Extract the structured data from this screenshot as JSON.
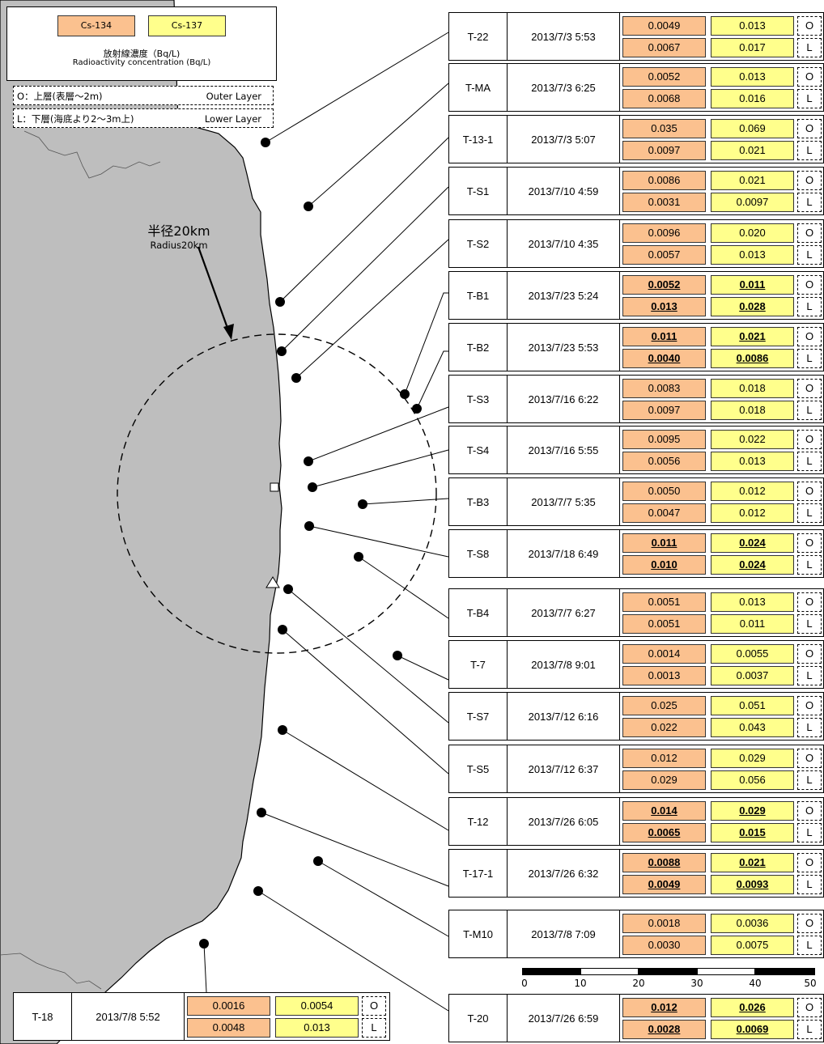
{
  "colors": {
    "cs134": "#FBC18F",
    "cs137": "#FFFF8C",
    "land": "#BEBEBE",
    "sea": "#FFFFFF"
  },
  "legend": {
    "cs134": "Cs-134",
    "cs137": "Cs-137",
    "conc_ja": "放射線濃度（Bq/L)",
    "conc_en": "Radioactivity concentration (Bq/L)",
    "outer_ja": "O：上層(表層～2m)",
    "outer_en": "Outer Layer",
    "lower_ja": "L：下層(海底より2～3m上)",
    "lower_en": "Lower Layer"
  },
  "radius": {
    "ja": "半径20km",
    "en": "Radius20km"
  },
  "layer_marks": {
    "outer": "O",
    "lower": "L"
  },
  "stations": [
    {
      "id": "T-22",
      "date": "2013/7/3 5:53",
      "o": [
        "0.0049",
        "0.013"
      ],
      "l": [
        "0.0067",
        "0.017"
      ],
      "bold": false
    },
    {
      "id": "T-MA",
      "date": "2013/7/3 6:25",
      "o": [
        "0.0052",
        "0.013"
      ],
      "l": [
        "0.0068",
        "0.016"
      ],
      "bold": false
    },
    {
      "id": "T-13-1",
      "date": "2013/7/3 5:07",
      "o": [
        "0.035",
        "0.069"
      ],
      "l": [
        "0.0097",
        "0.021"
      ],
      "bold": false
    },
    {
      "id": "T-S1",
      "date": "2013/7/10 4:59",
      "o": [
        "0.0086",
        "0.021"
      ],
      "l": [
        "0.0031",
        "0.0097"
      ],
      "bold": false
    },
    {
      "id": "T-S2",
      "date": "2013/7/10 4:35",
      "o": [
        "0.0096",
        "0.020"
      ],
      "l": [
        "0.0057",
        "0.013"
      ],
      "bold": false
    },
    {
      "id": "T-B1",
      "date": "2013/7/23 5:24",
      "o": [
        "0.0052",
        "0.011"
      ],
      "l": [
        "0.013",
        "0.028"
      ],
      "bold": true
    },
    {
      "id": "T-B2",
      "date": "2013/7/23 5:53",
      "o": [
        "0.011",
        "0.021"
      ],
      "l": [
        "0.0040",
        "0.0086"
      ],
      "bold": true
    },
    {
      "id": "T-S3",
      "date": "2013/7/16 6:22",
      "o": [
        "0.0083",
        "0.018"
      ],
      "l": [
        "0.0097",
        "0.018"
      ],
      "bold": false
    },
    {
      "id": "T-S4",
      "date": "2013/7/16 5:55",
      "o": [
        "0.0095",
        "0.022"
      ],
      "l": [
        "0.0056",
        "0.013"
      ],
      "bold": false
    },
    {
      "id": "T-B3",
      "date": "2013/7/7 5:35",
      "o": [
        "0.0050",
        "0.012"
      ],
      "l": [
        "0.0047",
        "0.012"
      ],
      "bold": false
    },
    {
      "id": "T-S8",
      "date": "2013/7/18 6:49",
      "o": [
        "0.011",
        "0.024"
      ],
      "l": [
        "0.010",
        "0.024"
      ],
      "bold": true
    },
    {
      "id": "T-B4",
      "date": "2013/7/7 6:27",
      "o": [
        "0.0051",
        "0.013"
      ],
      "l": [
        "0.0051",
        "0.011"
      ],
      "bold": false
    },
    {
      "id": "T-7",
      "date": "2013/7/8 9:01",
      "o": [
        "0.0014",
        "0.0055"
      ],
      "l": [
        "0.0013",
        "0.0037"
      ],
      "bold": false
    },
    {
      "id": "T-S7",
      "date": "2013/7/12 6:16",
      "o": [
        "0.025",
        "0.051"
      ],
      "l": [
        "0.022",
        "0.043"
      ],
      "bold": false
    },
    {
      "id": "T-S5",
      "date": "2013/7/12 6:37",
      "o": [
        "0.012",
        "0.029"
      ],
      "l": [
        "0.029",
        "0.056"
      ],
      "bold": false
    },
    {
      "id": "T-12",
      "date": "2013/7/26 6:05",
      "o": [
        "0.014",
        "0.029"
      ],
      "l": [
        "0.0065",
        "0.015"
      ],
      "bold": true
    },
    {
      "id": "T-17-1",
      "date": "2013/7/26 6:32",
      "o": [
        "0.0088",
        "0.021"
      ],
      "l": [
        "0.0049",
        "0.0093"
      ],
      "bold": true
    },
    {
      "id": "T-M10",
      "date": "2013/7/8 7:09",
      "o": [
        "0.0018",
        "0.0036"
      ],
      "l": [
        "0.0030",
        "0.0075"
      ],
      "bold": false
    },
    {
      "id": "T-20",
      "date": "2013/7/26 6:59",
      "o": [
        "0.012",
        "0.026"
      ],
      "l": [
        "0.0028",
        "0.0069"
      ],
      "bold": true
    },
    {
      "id": "T-18",
      "date": "2013/7/8 5:52",
      "o": [
        "0.0016",
        "0.0054"
      ],
      "l": [
        "0.0048",
        "0.013"
      ],
      "bold": false
    }
  ],
  "scale_labels": [
    "0",
    "10",
    "20",
    "30",
    "40",
    "50"
  ]
}
